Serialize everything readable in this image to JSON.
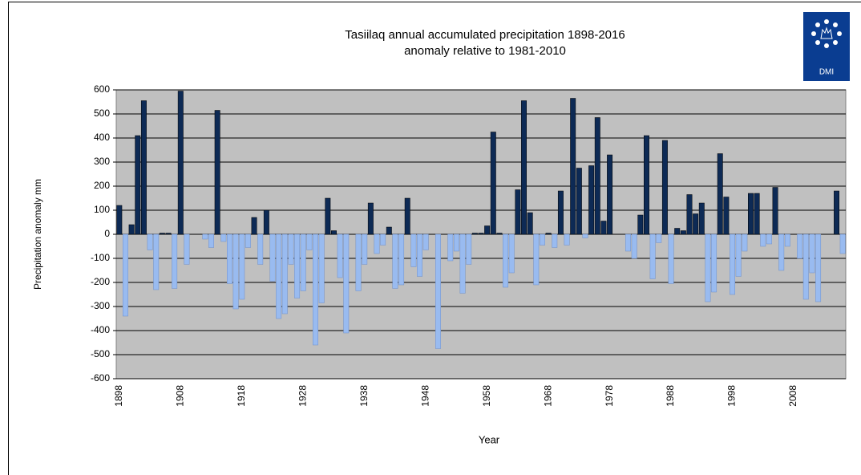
{
  "chart_data": {
    "type": "bar",
    "title": "Tasiilaq annual  accumulated precipitation 1898-2016",
    "subtitle": "anomaly relative to 1981-2010",
    "y_label": "Precipitation anomaly mm",
    "x_label": "Year",
    "logo": "DMI",
    "positive_color": "#0d2a55",
    "negative_color": "#99bbf0",
    "background": "#c0c0c0",
    "grid": true,
    "ylim": [
      -600,
      600
    ],
    "yticks": [
      -600,
      -500,
      -400,
      -300,
      -200,
      -100,
      0,
      100,
      200,
      300,
      400,
      500,
      600
    ],
    "categories": [
      "1898",
      null,
      null,
      null,
      null,
      null,
      null,
      null,
      null,
      null,
      "1908",
      null,
      null,
      null,
      null,
      null,
      null,
      null,
      null,
      null,
      "1918",
      null,
      null,
      null,
      null,
      null,
      null,
      null,
      null,
      null,
      "1928",
      null,
      null,
      null,
      null,
      null,
      null,
      null,
      null,
      null,
      "1938",
      null,
      null,
      null,
      null,
      null,
      null,
      null,
      null,
      null,
      "1948",
      null,
      null,
      null,
      null,
      null,
      null,
      null,
      null,
      null,
      "1958",
      null,
      null,
      null,
      null,
      null,
      null,
      null,
      null,
      null,
      "1968",
      null,
      null,
      null,
      null,
      null,
      null,
      null,
      null,
      null,
      "1978",
      null,
      null,
      null,
      null,
      null,
      null,
      null,
      null,
      null,
      "1988",
      null,
      null,
      null,
      null,
      null,
      null,
      null,
      null,
      null,
      "1998",
      null,
      null,
      null,
      null,
      null,
      null,
      null,
      null,
      null,
      "2008",
      null,
      null,
      null,
      null,
      null,
      null,
      null,
      null
    ],
    "values": [
      120,
      -340,
      40,
      410,
      555,
      -65,
      -230,
      5,
      5,
      -225,
      595,
      -125,
      0,
      0,
      -20,
      -55,
      515,
      -30,
      -205,
      -310,
      -270,
      -55,
      70,
      -125,
      100,
      -195,
      -350,
      -330,
      -125,
      -265,
      -235,
      -65,
      -460,
      -285,
      150,
      15,
      -180,
      -410,
      0,
      -235,
      -125,
      130,
      -80,
      -45,
      30,
      -225,
      -210,
      150,
      -135,
      -175,
      -65,
      0,
      -475,
      0,
      -110,
      -70,
      -245,
      -125,
      5,
      5,
      35,
      425,
      5,
      -220,
      -160,
      185,
      555,
      90,
      -210,
      -45,
      5,
      -55,
      180,
      -45,
      565,
      275,
      -15,
      285,
      485,
      55,
      330,
      0,
      0,
      -70,
      -100,
      80,
      410,
      -185,
      -35,
      390,
      -205,
      25,
      15,
      165,
      85,
      130,
      -280,
      -240,
      335,
      155,
      -250,
      -175,
      -70,
      170,
      170,
      -50,
      -40,
      195,
      -150,
      -50,
      0,
      -100,
      -270,
      -160,
      -280,
      0,
      0,
      180,
      -80
    ]
  }
}
